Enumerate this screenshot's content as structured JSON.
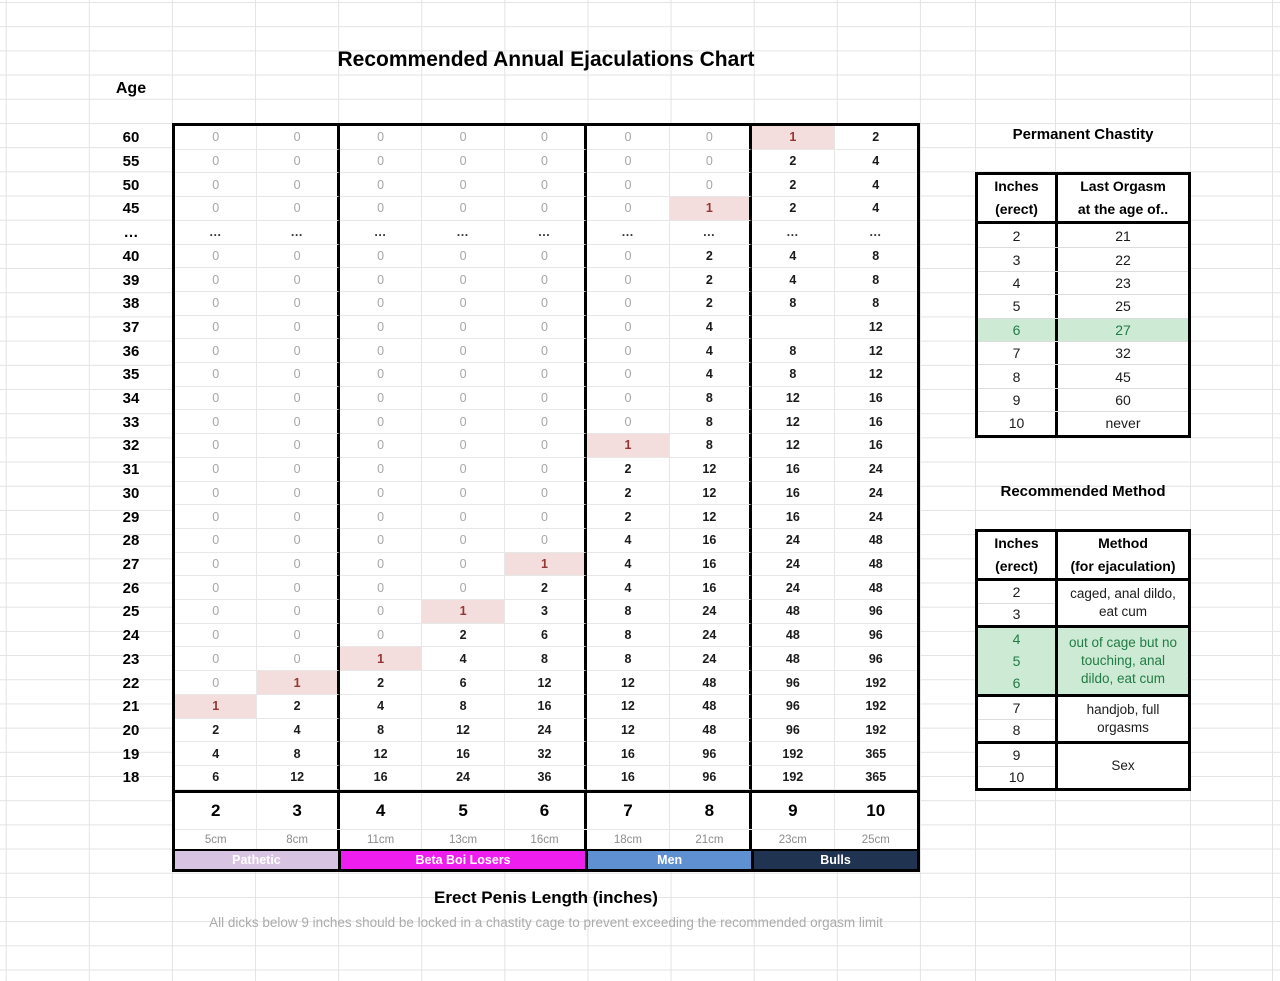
{
  "footnote": "All dicks below 9 inches should be locked in a chastity cage to prevent exceeding the recommended orgasm limit",
  "chart_data": {
    "type": "table",
    "title": "Recommended Annual Ejaculations Chart",
    "xlabel": "Erect Penis Length (inches)",
    "ylabel": "Age",
    "columns_inches": [
      "2",
      "3",
      "4",
      "5",
      "6",
      "7",
      "8",
      "9",
      "10"
    ],
    "columns_cm": [
      "5cm",
      "8cm",
      "11cm",
      "13cm",
      "16cm",
      "18cm",
      "21cm",
      "23cm",
      "25cm"
    ],
    "column_groups": [
      {
        "label": "Pathetic",
        "span": 2,
        "color": "#d9c3e2"
      },
      {
        "label": "Beta Boi Losers",
        "span": 3,
        "color": "#ee1fee"
      },
      {
        "label": "Men",
        "span": 2,
        "color": "#5f90d2"
      },
      {
        "label": "Bulls",
        "span": 2,
        "color": "#203351"
      }
    ],
    "rows": [
      {
        "age": "60",
        "values": [
          "0",
          "0",
          "0",
          "0",
          "0",
          "0",
          "0",
          "1",
          "2"
        ]
      },
      {
        "age": "55",
        "values": [
          "0",
          "0",
          "0",
          "0",
          "0",
          "0",
          "0",
          "2",
          "4"
        ]
      },
      {
        "age": "50",
        "values": [
          "0",
          "0",
          "0",
          "0",
          "0",
          "0",
          "0",
          "2",
          "4"
        ]
      },
      {
        "age": "45",
        "values": [
          "0",
          "0",
          "0",
          "0",
          "0",
          "0",
          "1",
          "2",
          "4"
        ]
      },
      {
        "age": "…",
        "values": [
          "…",
          "…",
          "…",
          "…",
          "…",
          "…",
          "…",
          "…",
          "…"
        ]
      },
      {
        "age": "40",
        "values": [
          "0",
          "0",
          "0",
          "0",
          "0",
          "0",
          "2",
          "4",
          "8"
        ]
      },
      {
        "age": "39",
        "values": [
          "0",
          "0",
          "0",
          "0",
          "0",
          "0",
          "2",
          "4",
          "8"
        ]
      },
      {
        "age": "38",
        "values": [
          "0",
          "0",
          "0",
          "0",
          "0",
          "0",
          "2",
          "8",
          "8"
        ]
      },
      {
        "age": "37",
        "values": [
          "0",
          "0",
          "0",
          "0",
          "0",
          "0",
          "4",
          "",
          "12"
        ]
      },
      {
        "age": "36",
        "values": [
          "0",
          "0",
          "0",
          "0",
          "0",
          "0",
          "4",
          "8",
          "12"
        ]
      },
      {
        "age": "35",
        "values": [
          "0",
          "0",
          "0",
          "0",
          "0",
          "0",
          "4",
          "8",
          "12"
        ]
      },
      {
        "age": "34",
        "values": [
          "0",
          "0",
          "0",
          "0",
          "0",
          "0",
          "8",
          "12",
          "16"
        ]
      },
      {
        "age": "33",
        "values": [
          "0",
          "0",
          "0",
          "0",
          "0",
          "0",
          "8",
          "12",
          "16"
        ]
      },
      {
        "age": "32",
        "values": [
          "0",
          "0",
          "0",
          "0",
          "0",
          "1",
          "8",
          "12",
          "16"
        ]
      },
      {
        "age": "31",
        "values": [
          "0",
          "0",
          "0",
          "0",
          "0",
          "2",
          "12",
          "16",
          "24"
        ]
      },
      {
        "age": "30",
        "values": [
          "0",
          "0",
          "0",
          "0",
          "0",
          "2",
          "12",
          "16",
          "24"
        ]
      },
      {
        "age": "29",
        "values": [
          "0",
          "0",
          "0",
          "0",
          "0",
          "2",
          "12",
          "16",
          "24"
        ]
      },
      {
        "age": "28",
        "values": [
          "0",
          "0",
          "0",
          "0",
          "0",
          "4",
          "16",
          "24",
          "48"
        ]
      },
      {
        "age": "27",
        "values": [
          "0",
          "0",
          "0",
          "0",
          "1",
          "4",
          "16",
          "24",
          "48"
        ]
      },
      {
        "age": "26",
        "values": [
          "0",
          "0",
          "0",
          "0",
          "2",
          "4",
          "16",
          "24",
          "48"
        ]
      },
      {
        "age": "25",
        "values": [
          "0",
          "0",
          "0",
          "1",
          "3",
          "8",
          "24",
          "48",
          "96"
        ]
      },
      {
        "age": "24",
        "values": [
          "0",
          "0",
          "0",
          "2",
          "6",
          "8",
          "24",
          "48",
          "96"
        ]
      },
      {
        "age": "23",
        "values": [
          "0",
          "0",
          "1",
          "4",
          "8",
          "8",
          "24",
          "48",
          "96"
        ]
      },
      {
        "age": "22",
        "values": [
          "0",
          "1",
          "2",
          "6",
          "12",
          "12",
          "48",
          "96",
          "192"
        ]
      },
      {
        "age": "21",
        "values": [
          "1",
          "2",
          "4",
          "8",
          "16",
          "12",
          "48",
          "96",
          "192"
        ]
      },
      {
        "age": "20",
        "values": [
          "2",
          "4",
          "8",
          "12",
          "24",
          "12",
          "48",
          "96",
          "192"
        ]
      },
      {
        "age": "19",
        "values": [
          "4",
          "8",
          "12",
          "16",
          "32",
          "16",
          "96",
          "192",
          "365"
        ]
      },
      {
        "age": "18",
        "values": [
          "6",
          "12",
          "16",
          "24",
          "36",
          "16",
          "96",
          "192",
          "365"
        ]
      }
    ],
    "highlight_cells": [
      [
        0,
        7
      ],
      [
        3,
        6
      ],
      [
        13,
        5
      ],
      [
        18,
        4
      ],
      [
        20,
        3
      ],
      [
        22,
        2
      ],
      [
        23,
        1
      ],
      [
        24,
        0
      ]
    ],
    "highlight_style": {
      "fill": "#f3dedd",
      "text": "#943634"
    }
  },
  "chastity": {
    "title": "Permanent Chastity",
    "col1_header": [
      "Inches",
      "(erect)"
    ],
    "col2_header": [
      "Last Orgasm",
      "at the age of.."
    ],
    "rows": [
      {
        "inches": "2",
        "age": "21"
      },
      {
        "inches": "3",
        "age": "22"
      },
      {
        "inches": "4",
        "age": "23"
      },
      {
        "inches": "5",
        "age": "25"
      },
      {
        "inches": "6",
        "age": "27",
        "highlight": true
      },
      {
        "inches": "7",
        "age": "32"
      },
      {
        "inches": "8",
        "age": "45"
      },
      {
        "inches": "9",
        "age": "60"
      },
      {
        "inches": "10",
        "age": "never"
      }
    ],
    "highlight_style": {
      "fill": "#cdebd4",
      "text": "#227a44"
    }
  },
  "method": {
    "title": "Recommended Method",
    "col1_header": [
      "Inches",
      "(erect)"
    ],
    "col2_header": [
      "Method",
      "(for ejaculation)"
    ],
    "groups": [
      {
        "inches": [
          "2",
          "3"
        ],
        "method": "caged, anal dildo, eat cum",
        "highlight": false
      },
      {
        "inches": [
          "4",
          "5",
          "6"
        ],
        "method": "out of cage but no touching, anal dildo, eat cum",
        "highlight": true
      },
      {
        "inches": [
          "7",
          "8"
        ],
        "method": "handjob, full orgasms",
        "highlight": false
      },
      {
        "inches": [
          "9",
          "10"
        ],
        "method": "Sex",
        "highlight": false
      }
    ],
    "highlight_style": {
      "fill": "#cdebd4",
      "text": "#227a44"
    }
  }
}
